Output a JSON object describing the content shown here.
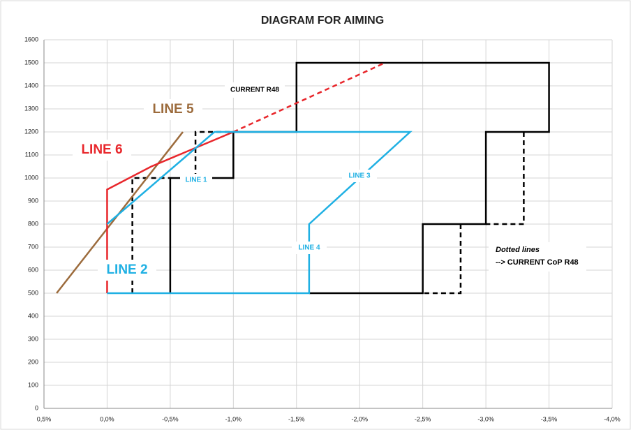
{
  "chart_data": {
    "type": "line",
    "title": "DIAGRAM FOR AIMING",
    "xlim": [
      0.5,
      -4.0
    ],
    "ylim": [
      0,
      1600
    ],
    "xticks": [
      {
        "value": 0.5,
        "label": "0,5%"
      },
      {
        "value": 0,
        "label": "0,0%"
      },
      {
        "value": -0.5,
        "label": "-0,5%"
      },
      {
        "value": -1.0,
        "label": "-1,0%"
      },
      {
        "value": -1.5,
        "label": "-1,5%"
      },
      {
        "value": -2.0,
        "label": "-2,0%"
      },
      {
        "value": -2.5,
        "label": "-2,5%"
      },
      {
        "value": -3.0,
        "label": "-3,0%"
      },
      {
        "value": -3.5,
        "label": "-3,5%"
      },
      {
        "value": -4.0,
        "label": "-4,0%"
      }
    ],
    "yticks": [
      0,
      100,
      200,
      300,
      400,
      500,
      600,
      700,
      800,
      900,
      1000,
      1100,
      1200,
      1300,
      1400,
      1500,
      1600
    ],
    "grid": true,
    "series": [
      {
        "color": "#000000",
        "dashed": false,
        "x": [
          -0.5,
          -0.5,
          -1.0,
          -1.0,
          -1.5,
          -1.5,
          -3.5,
          -3.5,
          -3.0,
          -3.0,
          -2.5,
          -2.5,
          -1.6
        ],
        "values": [
          500,
          1000,
          1000,
          1200,
          1200,
          1500,
          1500,
          1200,
          1200,
          800,
          800,
          500,
          500
        ]
      },
      {
        "color": "#000000",
        "dashed": true,
        "x": [
          -0.2,
          -0.2,
          -0.5,
          null,
          -0.7,
          -0.7,
          -1.0,
          null,
          -3.3,
          -3.3,
          -3.0,
          null,
          -2.8,
          -2.8,
          -2.5
        ],
        "values": [
          500,
          1000,
          1000,
          null,
          1000,
          1200,
          1200,
          null,
          1200,
          800,
          800,
          null,
          800,
          500,
          500
        ]
      },
      {
        "color": "#9c6b3c",
        "dashed": false,
        "x": [
          0.4,
          -0.6
        ],
        "values": [
          500,
          1200
        ]
      },
      {
        "color": "#e8262b",
        "dashed": false,
        "x": [
          0,
          0,
          -0.35,
          -1.0
        ],
        "values": [
          500,
          950,
          1050,
          1200
        ]
      },
      {
        "color": "#e8262b",
        "dashed": true,
        "x": [
          -1.0,
          -2.2
        ],
        "values": [
          1200,
          1500
        ]
      },
      {
        "color": "#1fb0e3",
        "dashed": false,
        "x": [
          0,
          -0.85,
          -2.4,
          -1.6,
          -1.6,
          0
        ],
        "values": [
          800,
          1200,
          1200,
          800,
          500,
          500
        ]
      }
    ],
    "annotations": [
      "CURRENT R48",
      "LINE 1",
      "LINE 2",
      "LINE 3",
      "LINE 4",
      "LINE 5",
      "LINE 6",
      "Dotted lines",
      "--> CURRENT CoP R48"
    ]
  }
}
